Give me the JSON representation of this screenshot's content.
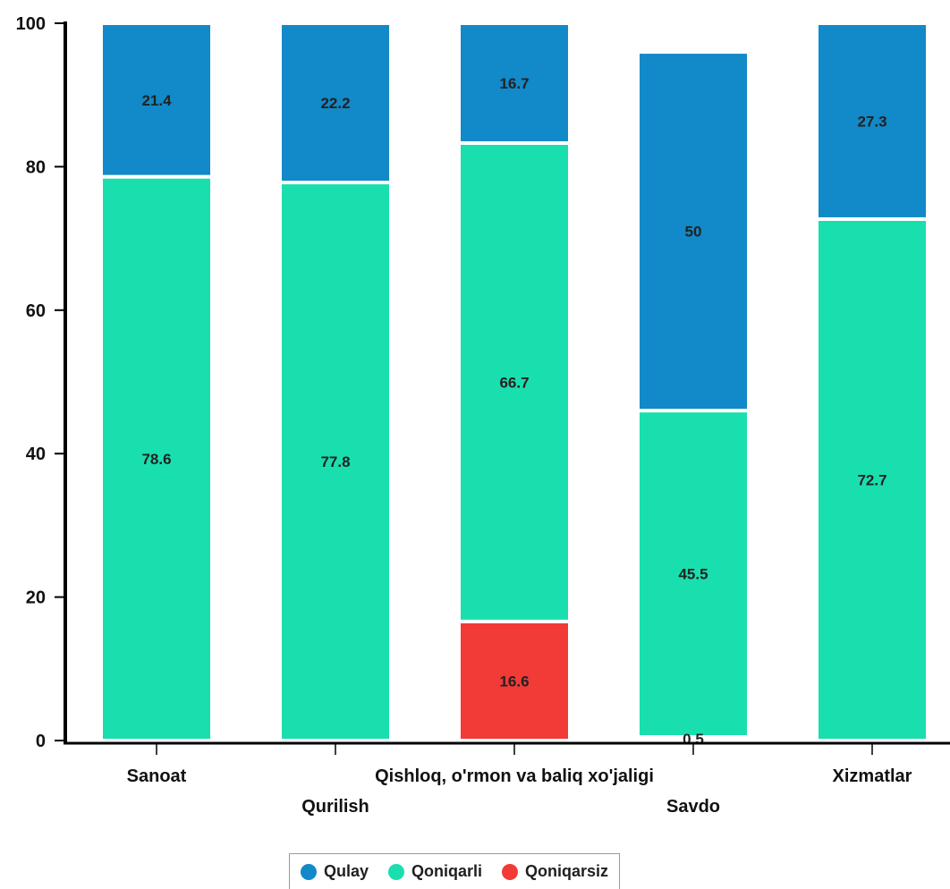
{
  "chart_data": {
    "type": "bar",
    "stacked": true,
    "categories": [
      "Sanoat",
      "Qurilish",
      "Qishloq, o'rmon va baliq xo'jaligi",
      "Savdo",
      "Xizmatlar"
    ],
    "series": [
      {
        "name": "Qoniqarsiz",
        "color": "#f23a37",
        "values": [
          null,
          null,
          16.6,
          0.5,
          null
        ]
      },
      {
        "name": "Qoniqarli",
        "color": "#19dfae",
        "values": [
          78.6,
          77.8,
          66.7,
          45.5,
          72.7
        ]
      },
      {
        "name": "Qulay",
        "color": "#1289c8",
        "values": [
          21.4,
          22.2,
          16.7,
          50,
          27.3
        ]
      }
    ],
    "ylim": [
      0,
      100
    ],
    "yticks": [
      0,
      20,
      40,
      60,
      80,
      100
    ],
    "title": "",
    "xlabel": "",
    "ylabel": "",
    "grid": false,
    "legend_position": "bottom"
  },
  "legend": [
    {
      "label": "Qulay",
      "color": "#1289c8"
    },
    {
      "label": "Qoniqarli",
      "color": "#19dfae"
    },
    {
      "label": "Qoniqarsiz",
      "color": "#f23a37"
    }
  ]
}
